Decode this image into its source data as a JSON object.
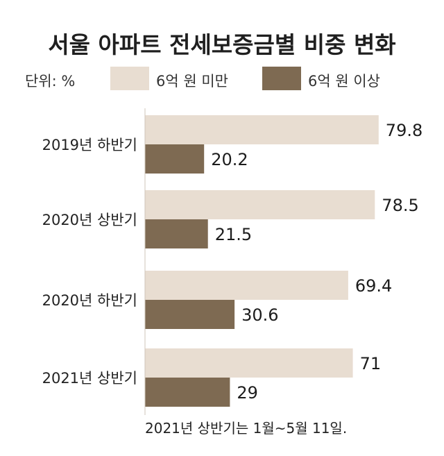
{
  "chart_data": {
    "type": "bar",
    "orientation": "horizontal",
    "title": "서울 아파트 전세보증금별 비중 변화",
    "unit_label": "단위: %",
    "categories": [
      "2019년 하반기",
      "2020년 상반기",
      "2020년 하반기",
      "2021년 상반기"
    ],
    "series": [
      {
        "name": "6억 원 미만",
        "values": [
          79.8,
          78.5,
          69.4,
          71
        ],
        "value_labels": [
          "79.8",
          "78.5",
          "69.4",
          "71"
        ],
        "color": "#e8ddd1"
      },
      {
        "name": "6억 원 이상",
        "values": [
          20.2,
          21.5,
          30.6,
          29
        ],
        "value_labels": [
          "20.2",
          "21.5",
          "30.6",
          "29"
        ],
        "color": "#7e6a52"
      }
    ],
    "xlim": [
      0,
      100
    ],
    "grid": false,
    "legend_position": "top",
    "note": "2021년 상반기는 1월~5월 11일."
  }
}
